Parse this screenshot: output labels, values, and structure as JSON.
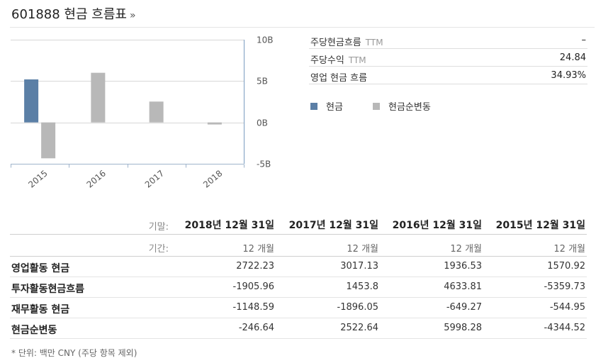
{
  "header": {
    "title": "601888 현금 흐름표",
    "more": "»"
  },
  "stats": [
    {
      "label": "주당현금흐름",
      "suffix": "TTM",
      "value": "–"
    },
    {
      "label": "주당수익",
      "suffix": "TTM",
      "value": "24.84"
    },
    {
      "label": "영업 현금 흐름",
      "suffix": "",
      "value": "34.93%"
    }
  ],
  "legend": [
    {
      "label": "현금",
      "color": "#5b7fa6"
    },
    {
      "label": "현금순변동",
      "color": "#b8b8b8"
    }
  ],
  "chart_data": {
    "type": "bar",
    "categories": [
      "2015",
      "2016",
      "2017",
      "2018"
    ],
    "series": [
      {
        "name": "현금",
        "color": "#5b7fa6",
        "values": [
          5.2,
          null,
          null,
          null
        ]
      },
      {
        "name": "현금순변동",
        "color": "#b8b8b8",
        "values": [
          -4.34,
          6.0,
          2.52,
          -0.25
        ]
      }
    ],
    "y_ticks": [
      "10B",
      "5B",
      "0B",
      "-5B"
    ],
    "y_tick_values": [
      10,
      5,
      0,
      -5
    ],
    "ylim": [
      -5,
      10
    ],
    "y_unit": "B",
    "y_axis_side": "right",
    "grid": true,
    "legend_position": "right"
  },
  "table": {
    "date_label": "기말:",
    "period_label": "기간:",
    "dates": [
      "2018년 12월 31일",
      "2017년 12월 31일",
      "2016년 12월 31일",
      "2015년 12월 31일"
    ],
    "periods": [
      "12 개월",
      "12 개월",
      "12 개월",
      "12 개월"
    ],
    "rows": [
      {
        "label": "영업활동 현금",
        "values": [
          "2722.23",
          "3017.13",
          "1936.53",
          "1570.92"
        ]
      },
      {
        "label": "투자활동현금흐름",
        "values": [
          "-1905.96",
          "1453.8",
          "4633.81",
          "-5359.73"
        ]
      },
      {
        "label": "재무활동 현금",
        "values": [
          "-1148.59",
          "-1896.05",
          "-649.27",
          "-544.95"
        ]
      },
      {
        "label": "현금순변동",
        "values": [
          "-246.64",
          "2522.64",
          "5998.28",
          "-4344.52"
        ]
      }
    ]
  },
  "footnote": "* 단위: 백만 CNY (주당 항목 제외)"
}
